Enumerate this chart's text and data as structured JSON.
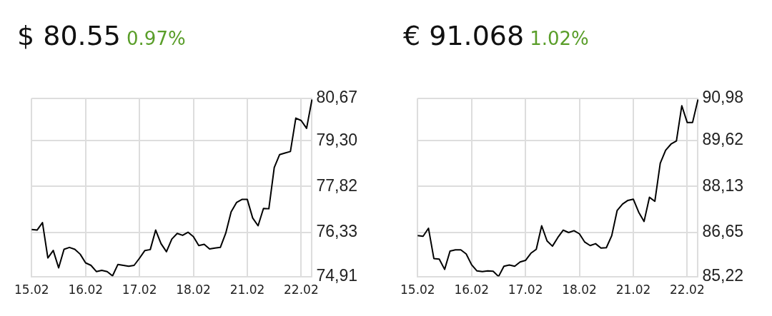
{
  "chart_data": [
    {
      "type": "line",
      "title": "$ 80.55",
      "subtitle": "0.97%",
      "categories": [
        "15.02",
        null,
        null,
        null,
        null,
        null,
        null,
        null,
        null,
        null,
        "16.02",
        null,
        null,
        null,
        null,
        null,
        null,
        null,
        null,
        null,
        "17.02",
        null,
        null,
        null,
        null,
        null,
        null,
        null,
        null,
        null,
        "18.02",
        null,
        null,
        null,
        null,
        null,
        null,
        null,
        null,
        null,
        "21.02",
        null,
        null,
        null,
        null,
        null,
        null,
        null,
        null,
        null,
        "22.02",
        null,
        null
      ],
      "ylim": [
        74.91,
        80.67
      ],
      "yticks": [
        {
          "value": 74.91,
          "label": "74,91"
        },
        {
          "value": 76.33,
          "label": "76,33"
        },
        {
          "value": 77.82,
          "label": "77,82"
        },
        {
          "value": 79.3,
          "label": "79,30"
        },
        {
          "value": 80.67,
          "label": "80,67"
        }
      ],
      "grid": true,
      "marker": "none",
      "line_style": "solid",
      "series": [
        {
          "color": "#000000",
          "values": [
            76.43,
            76.41,
            76.65,
            75.51,
            75.75,
            75.19,
            75.79,
            75.85,
            75.79,
            75.63,
            75.35,
            75.27,
            75.07,
            75.11,
            75.07,
            74.93,
            75.3,
            75.27,
            75.24,
            75.27,
            75.5,
            75.75,
            75.78,
            76.41,
            75.97,
            75.71,
            76.12,
            76.3,
            76.24,
            76.34,
            76.2,
            75.91,
            75.95,
            75.8,
            75.83,
            75.85,
            76.31,
            77,
            77.3,
            77.4,
            77.4,
            76.8,
            76.55,
            77.11,
            77.1,
            78.43,
            78.85,
            78.9,
            78.95,
            80.03,
            79.95,
            79.7,
            80.63
          ]
        }
      ]
    },
    {
      "type": "line",
      "title": "€ 91.068",
      "subtitle": "1.02%",
      "categories": [
        "15.02",
        null,
        null,
        null,
        null,
        null,
        null,
        null,
        null,
        null,
        "16.02",
        null,
        null,
        null,
        null,
        null,
        null,
        null,
        null,
        null,
        "17.02",
        null,
        null,
        null,
        null,
        null,
        null,
        null,
        null,
        null,
        "18.02",
        null,
        null,
        null,
        null,
        null,
        null,
        null,
        null,
        null,
        "21.02",
        null,
        null,
        null,
        null,
        null,
        null,
        null,
        null,
        null,
        "22.02",
        null,
        null
      ],
      "ylim": [
        85.22,
        90.98
      ],
      "yticks": [
        {
          "value": 85.22,
          "label": "85,22"
        },
        {
          "value": 86.65,
          "label": "86,65"
        },
        {
          "value": 88.13,
          "label": "88,13"
        },
        {
          "value": 89.62,
          "label": "89,62"
        },
        {
          "value": 90.98,
          "label": "90,98"
        }
      ],
      "grid": true,
      "marker": "none",
      "line_style": "solid",
      "series": [
        {
          "color": "#000000",
          "values": [
            86.54,
            86.52,
            86.78,
            85.8,
            85.78,
            85.45,
            86.04,
            86.08,
            86.08,
            85.95,
            85.6,
            85.4,
            85.38,
            85.4,
            85.39,
            85.22,
            85.55,
            85.59,
            85.55,
            85.69,
            85.74,
            85.97,
            86.1,
            86.86,
            86.37,
            86.2,
            86.48,
            86.72,
            86.64,
            86.7,
            86.6,
            86.33,
            86.22,
            86.28,
            86.14,
            86.15,
            86.54,
            87.35,
            87.56,
            87.68,
            87.72,
            87.3,
            87,
            87.78,
            87.65,
            88.88,
            89.3,
            89.5,
            89.6,
            90.74,
            90.2,
            90.2,
            90.94
          ]
        }
      ]
    }
  ]
}
